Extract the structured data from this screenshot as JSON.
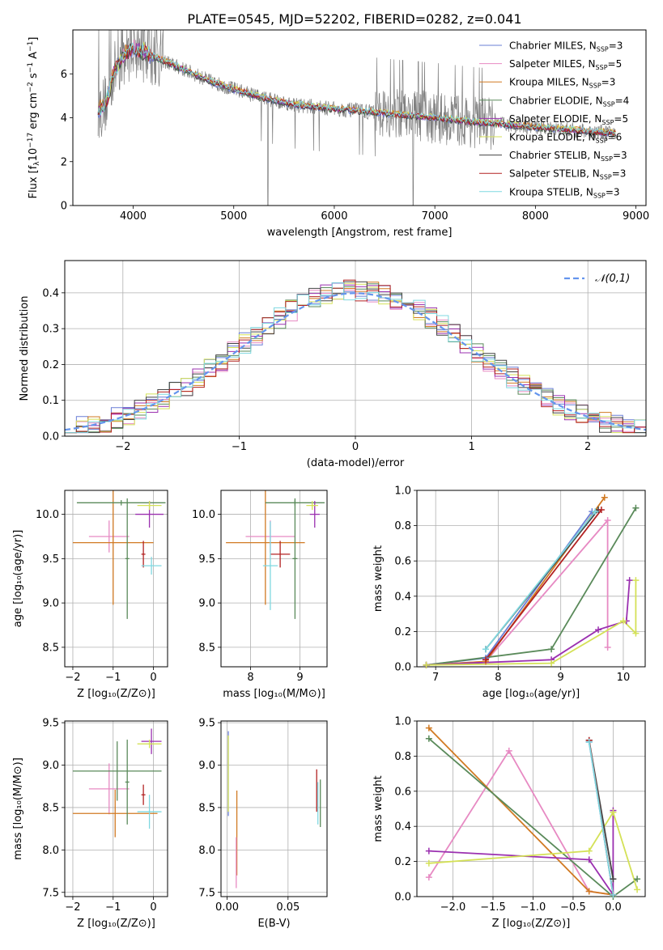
{
  "figure": {
    "title": "PLATE=0545, MJD=52202, FIBERID=0282, z=0.041"
  },
  "series_styles": [
    {
      "name": "Chabrier MILES",
      "nssp": "3",
      "color": "#6a7fd6"
    },
    {
      "name": "Salpeter MILES",
      "nssp": "5",
      "color": "#e78ac3"
    },
    {
      "name": "Kroupa MILES",
      "nssp": "3",
      "color": "#d17a22"
    },
    {
      "name": "Chabrier ELODIE",
      "nssp": "4",
      "color": "#5a8a5a"
    },
    {
      "name": "Salpeter ELODIE",
      "nssp": "5",
      "color": "#9b30b0"
    },
    {
      "name": "Kroupa ELODIE",
      "nssp": "6",
      "color": "#d4e157"
    },
    {
      "name": "Chabrier STELIB",
      "nssp": "3",
      "color": "#444444"
    },
    {
      "name": "Salpeter STELIB",
      "nssp": "3",
      "color": "#b22222"
    },
    {
      "name": "Kroupa STELIB",
      "nssp": "3",
      "color": "#7fd8e0"
    }
  ],
  "chart_data": [
    {
      "id": "spectrum",
      "type": "line",
      "xlabel": "wavelength [Angstrom, rest frame]",
      "ylabel_prefix": "Flux [f",
      "ylabel_mid": "10",
      "ylabel_exp1": "−17",
      "ylabel_mid2": " erg cm",
      "ylabel_exp2": "−2",
      "ylabel_mid3": " s",
      "ylabel_exp3": "−1",
      "ylabel_mid4": " A",
      "ylabel_exp4": "−1",
      "ylabel_suffix": "]",
      "xlim": [
        3400,
        9100
      ],
      "ylim": [
        0,
        8
      ],
      "xticks": [
        4000,
        5000,
        6000,
        7000,
        8000,
        9000
      ],
      "yticks": [
        0,
        2,
        4,
        6
      ],
      "data_color": "#808080",
      "continuum": {
        "x": [
          3650,
          3700,
          3750,
          3800,
          3900,
          4000,
          4100,
          4300,
          4500,
          4800,
          5000,
          5300,
          5600,
          6000,
          6300,
          6600,
          7000,
          7400,
          7800,
          8200,
          8600,
          8800
        ],
        "y": [
          4.3,
          4.5,
          4.9,
          6.0,
          6.8,
          7.2,
          7.0,
          6.6,
          6.2,
          5.6,
          5.3,
          4.9,
          4.6,
          4.4,
          4.3,
          4.15,
          4.0,
          3.8,
          3.65,
          3.5,
          3.35,
          3.3
        ]
      }
    },
    {
      "id": "residuals",
      "type": "histogram",
      "xlabel": "(data-model)/error",
      "ylabel": "Normed distribution",
      "xlim": [
        -2.5,
        2.5
      ],
      "ylim": [
        0,
        0.49
      ],
      "xticks": [
        -2,
        -1,
        0,
        1,
        2
      ],
      "yticks": [
        0.0,
        0.1,
        0.2,
        0.3,
        0.4
      ],
      "grid": true,
      "legend": "𝒩(0,1)",
      "gauss_color": "#6495ed"
    },
    {
      "id": "age-vs-Z",
      "type": "errorbar",
      "xlabel": "Z [log₁₀(Z/Z⊙)]",
      "ylabel": "age  [log₁₀(age/yr)]",
      "xlim": [
        -2.2,
        0.35
      ],
      "ylim": [
        8.28,
        10.27
      ],
      "xticks": [
        -2,
        -1,
        0
      ],
      "yticks": [
        8.5,
        9.0,
        9.5,
        10.0
      ],
      "grid": true,
      "points": [
        {
          "s": 1,
          "x": -1.1,
          "xe": 0.5,
          "y": 9.75,
          "ye": 0.18
        },
        {
          "s": 2,
          "x": -1.0,
          "xe": 1.0,
          "y": 9.68,
          "ye": 0.7
        },
        {
          "s": 3,
          "x": -0.8,
          "xe": 1.1,
          "y": 10.13,
          "ye": 0.03
        },
        {
          "s": 3,
          "x": -0.65,
          "xe": 0.05,
          "y": 9.5,
          "ye": 0.68
        },
        {
          "s": 4,
          "x": -0.1,
          "xe": 0.35,
          "y": 10.0,
          "ye": 0.15
        },
        {
          "s": 5,
          "x": -0.1,
          "xe": 0.3,
          "y": 10.1,
          "ye": 0.05
        },
        {
          "s": 7,
          "x": -0.25,
          "xe": 0.05,
          "y": 9.55,
          "ye": 0.15
        },
        {
          "s": 8,
          "x": -0.05,
          "xe": 0.25,
          "y": 9.42,
          "ye": 0.1
        }
      ]
    },
    {
      "id": "age-vs-mass",
      "type": "errorbar",
      "xlabel": "mass [log₁₀(M/M⊙)]",
      "ylabel": "",
      "xlim": [
        7.4,
        9.55
      ],
      "ylim": [
        8.28,
        10.27
      ],
      "xticks": [
        8,
        9
      ],
      "yticks": [
        8.5,
        9.0,
        9.5,
        10.0
      ],
      "grid": true,
      "points": [
        {
          "s": 1,
          "x": 8.4,
          "xe": 0.5,
          "y": 9.75,
          "ye": 0.18
        },
        {
          "s": 2,
          "x": 8.3,
          "xe": 0.8,
          "y": 9.68,
          "ye": 0.7
        },
        {
          "s": 3,
          "x": 8.9,
          "xe": 0.6,
          "y": 10.13,
          "ye": 0.03
        },
        {
          "s": 3,
          "x": 8.9,
          "xe": 0.05,
          "y": 9.5,
          "ye": 0.68
        },
        {
          "s": 4,
          "x": 9.3,
          "xe": 0.1,
          "y": 10.0,
          "ye": 0.15
        },
        {
          "s": 5,
          "x": 9.25,
          "xe": 0.12,
          "y": 10.1,
          "ye": 0.05
        },
        {
          "s": 7,
          "x": 8.6,
          "xe": 0.2,
          "y": 9.55,
          "ye": 0.15
        },
        {
          "s": 8,
          "x": 8.4,
          "xe": 0.15,
          "y": 9.42,
          "ye": 0.5
        }
      ]
    },
    {
      "id": "massweight-vs-age",
      "type": "line",
      "xlabel": "age  [log₁₀(age/yr)]",
      "ylabel": "mass weight",
      "xlim": [
        6.7,
        10.35
      ],
      "ylim": [
        0,
        1.0
      ],
      "xticks": [
        7,
        8,
        9,
        10
      ],
      "yticks": [
        0.0,
        0.2,
        0.4,
        0.6,
        0.8,
        1.0
      ],
      "grid": true,
      "series": [
        {
          "s": 0,
          "x": [
            6.85,
            7.8,
            9.5
          ],
          "y": [
            0.01,
            0.05,
            0.88
          ]
        },
        {
          "s": 1,
          "x": [
            6.85,
            7.8,
            9.75,
            9.75
          ],
          "y": [
            0.01,
            0.03,
            0.83,
            0.11
          ]
        },
        {
          "s": 2,
          "x": [
            6.85,
            7.8,
            9.7
          ],
          "y": [
            0.01,
            0.03,
            0.96
          ]
        },
        {
          "s": 3,
          "x": [
            6.85,
            8.85,
            10.2
          ],
          "y": [
            0.01,
            0.1,
            0.9
          ]
        },
        {
          "s": 4,
          "x": [
            6.85,
            8.85,
            9.6,
            10.05,
            10.1
          ],
          "y": [
            0.01,
            0.04,
            0.21,
            0.26,
            0.49
          ]
        },
        {
          "s": 5,
          "x": [
            6.85,
            8.85,
            10.0,
            10.2,
            10.2
          ],
          "y": [
            0.01,
            0.02,
            0.26,
            0.19,
            0.49
          ]
        },
        {
          "s": 6,
          "x": [
            7.8,
            9.6
          ],
          "y": [
            0.1,
            0.89
          ]
        },
        {
          "s": 7,
          "x": [
            7.8,
            9.65
          ],
          "y": [
            0.04,
            0.89
          ]
        },
        {
          "s": 8,
          "x": [
            7.8,
            9.55
          ],
          "y": [
            0.1,
            0.88
          ]
        }
      ]
    },
    {
      "id": "mass-vs-Z",
      "type": "errorbar",
      "xlabel": "Z [log₁₀(Z/Z⊙)]",
      "ylabel": "mass [log₁₀(M/M⊙)]",
      "xlim": [
        -2.2,
        0.35
      ],
      "ylim": [
        7.45,
        9.52
      ],
      "xticks": [
        -2,
        -1,
        0
      ],
      "yticks": [
        7.5,
        8.0,
        8.5,
        9.0,
        9.5
      ],
      "grid": true,
      "points": [
        {
          "s": 1,
          "x": -1.1,
          "xe": 0.5,
          "y": 8.72,
          "ye": 0.3
        },
        {
          "s": 2,
          "x": -0.95,
          "xe": 1.05,
          "y": 8.43,
          "ye": 0.28
        },
        {
          "s": 3,
          "x": -0.9,
          "xe": 1.1,
          "y": 8.93,
          "ye": 0.35
        },
        {
          "s": 3,
          "x": -0.65,
          "xe": 0.05,
          "y": 8.8,
          "ye": 0.5
        },
        {
          "s": 4,
          "x": -0.05,
          "xe": 0.25,
          "y": 9.28,
          "ye": 0.15
        },
        {
          "s": 5,
          "x": -0.1,
          "xe": 0.3,
          "y": 9.25,
          "ye": 0.05
        },
        {
          "s": 7,
          "x": -0.25,
          "xe": 0.05,
          "y": 8.65,
          "ye": 0.12
        },
        {
          "s": 8,
          "x": -0.1,
          "xe": 0.3,
          "y": 8.45,
          "ye": 0.2
        }
      ]
    },
    {
      "id": "mass-vs-EBV",
      "type": "errorbar",
      "xlabel": "E(B-V)",
      "ylabel": "",
      "xlim": [
        -0.005,
        0.082
      ],
      "ylim": [
        7.45,
        9.52
      ],
      "xticks": [
        0.0,
        0.05
      ],
      "yticks": [
        7.5,
        8.0,
        8.5,
        9.0,
        9.5
      ],
      "grid": true,
      "points": [
        {
          "s": 0,
          "x": 0.001,
          "xe": 0.0,
          "y": 8.9,
          "ye": 0.5
        },
        {
          "s": 2,
          "x": 0.008,
          "xe": 0.0,
          "y": 8.2,
          "ye": 0.5
        },
        {
          "s": 3,
          "x": 0.0765,
          "xe": 0.0,
          "y": 8.55,
          "ye": 0.28
        },
        {
          "s": 5,
          "x": 0.001,
          "xe": 0.0,
          "y": 8.9,
          "ye": 0.45
        },
        {
          "s": 7,
          "x": 0.0735,
          "xe": 0.0,
          "y": 8.7,
          "ye": 0.25
        },
        {
          "s": 8,
          "x": 0.0745,
          "xe": 0.0,
          "y": 8.55,
          "ye": 0.25
        },
        {
          "s": 1,
          "x": 0.0075,
          "xe": 0.0,
          "y": 7.85,
          "ye": 0.3
        }
      ]
    },
    {
      "id": "massweight-vs-Z",
      "type": "line",
      "xlabel": "Z [log₁₀(Z/Z⊙)]",
      "ylabel": "mass weight",
      "xlim": [
        -2.45,
        0.4
      ],
      "ylim": [
        0,
        1.0
      ],
      "xticks": [
        -2.0,
        -1.5,
        -1.0,
        -0.5,
        0.0
      ],
      "yticks": [
        0.0,
        0.2,
        0.4,
        0.6,
        0.8,
        1.0
      ],
      "grid": true,
      "series": [
        {
          "s": 0,
          "x": [
            -0.3,
            0.0
          ],
          "y": [
            0.88,
            0.01
          ]
        },
        {
          "s": 1,
          "x": [
            -2.3,
            -1.3,
            -0.3,
            0.0
          ],
          "y": [
            0.11,
            0.83,
            0.03,
            0.01
          ]
        },
        {
          "s": 2,
          "x": [
            -2.3,
            -0.3,
            0.0
          ],
          "y": [
            0.96,
            0.03,
            0.01
          ]
        },
        {
          "s": 3,
          "x": [
            -2.3,
            0.0,
            0.3
          ],
          "y": [
            0.9,
            0.0,
            0.1
          ]
        },
        {
          "s": 4,
          "x": [
            -2.3,
            -0.3,
            0.0,
            0.0
          ],
          "y": [
            0.26,
            0.21,
            0.01,
            0.49
          ]
        },
        {
          "s": 5,
          "x": [
            -2.3,
            -0.3,
            0.0,
            0.3
          ],
          "y": [
            0.19,
            0.26,
            0.48,
            0.04
          ]
        },
        {
          "s": 6,
          "x": [
            -0.3,
            0.0
          ],
          "y": [
            0.89,
            0.1
          ]
        },
        {
          "s": 7,
          "x": [
            -0.3,
            0.0
          ],
          "y": [
            0.89,
            0.01
          ]
        },
        {
          "s": 8,
          "x": [
            -0.3,
            0.0
          ],
          "y": [
            0.88,
            0.01
          ]
        }
      ]
    }
  ]
}
